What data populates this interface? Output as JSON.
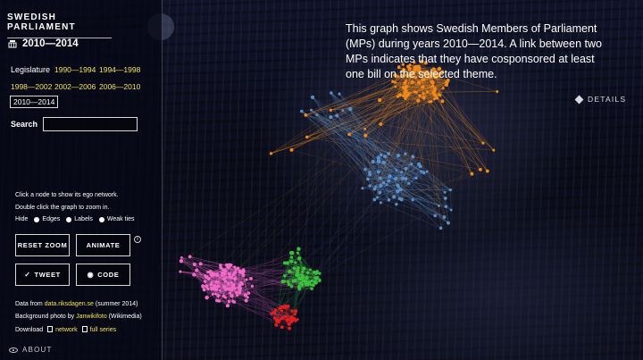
{
  "site_title": "SWEDISH PARLIAMENT",
  "theme_period": "2010—2014",
  "legislature": {
    "label": "Legislature",
    "items": [
      "1990—1994",
      "1994—1998",
      "1998—2002",
      "2002—2006",
      "2006—2010",
      "2010—2014"
    ],
    "selected": "2010—2014"
  },
  "search": {
    "label": "Search",
    "placeholder": ""
  },
  "hints": {
    "click_node": "Click a node to show its ego network.",
    "double_click": "Double click the graph to zoom in."
  },
  "hide_options": {
    "label": "Hide",
    "items": [
      "Edges",
      "Labels",
      "Weak ties"
    ]
  },
  "buttons": {
    "reset_zoom": "RESET ZOOM",
    "animate": "ANIMATE",
    "tweet": "TWEET",
    "code": "CODE"
  },
  "credits": {
    "data_from": "Data from",
    "data_link": "data.riksdagen.se",
    "data_suffix": "(summer 2014)",
    "photo_prefix": "Background photo by",
    "photo_link": "Janwikifoto",
    "photo_suffix": "(Wikimedia)",
    "download_label": "Download",
    "network_link": "network",
    "full_series_link": "full series"
  },
  "about_label": "ABOUT",
  "description": "This graph shows Swedish Members of Parliament (MPs) during years 2010—2014. A link between two MPs indicates that they have cosponsored at least one bill on the selected theme.",
  "details_label": "DETAILS",
  "colors": {
    "accent_link": "#f3e25a",
    "orange_cluster": "#f08a1c",
    "blue_cluster": "#5b8fc8",
    "pink_cluster": "#f06bc8",
    "green_cluster": "#3cc03c",
    "red_cluster": "#e02020"
  }
}
